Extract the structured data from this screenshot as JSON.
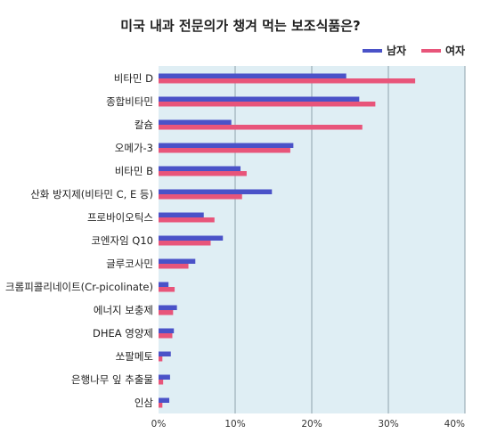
{
  "chart_data": {
    "type": "bar",
    "orientation": "horizontal",
    "title": "미국 내과 전문의가 챙겨 먹는 보조식품은?",
    "categories": [
      "비타민 D",
      "종합비타민",
      "칼슘",
      "오메가-3",
      "비타민 B",
      "산화 방지제(비타민 C, E 등)",
      "프로바이오틱스",
      "코엔자임 Q10",
      "글루코사민",
      "크롬피콜리네이트(Cr-picolinate)",
      "에너지 보충제",
      "DHEA 영양제",
      "쏘팔메토",
      "은행나무 잎 추출물",
      "인삼"
    ],
    "series": [
      {
        "name": "남자",
        "color": "#4a52c8",
        "values": [
          24.5,
          26.2,
          9.5,
          17.6,
          10.7,
          14.8,
          5.9,
          8.4,
          4.8,
          1.3,
          2.4,
          2.0,
          1.6,
          1.5,
          1.4
        ]
      },
      {
        "name": "여자",
        "color": "#e8557a",
        "values": [
          33.5,
          28.3,
          26.6,
          17.2,
          11.5,
          10.9,
          7.3,
          6.8,
          3.9,
          2.1,
          1.9,
          1.8,
          0.5,
          0.6,
          0.5
        ]
      }
    ],
    "xlim": [
      0,
      40
    ],
    "xticks": [
      "0%",
      "10%",
      "20%",
      "30%",
      "40%"
    ],
    "xtick_values": [
      0,
      10,
      20,
      30,
      40
    ],
    "grid": true,
    "legend_position": "top-right",
    "plot_background": "#dfeef4"
  }
}
